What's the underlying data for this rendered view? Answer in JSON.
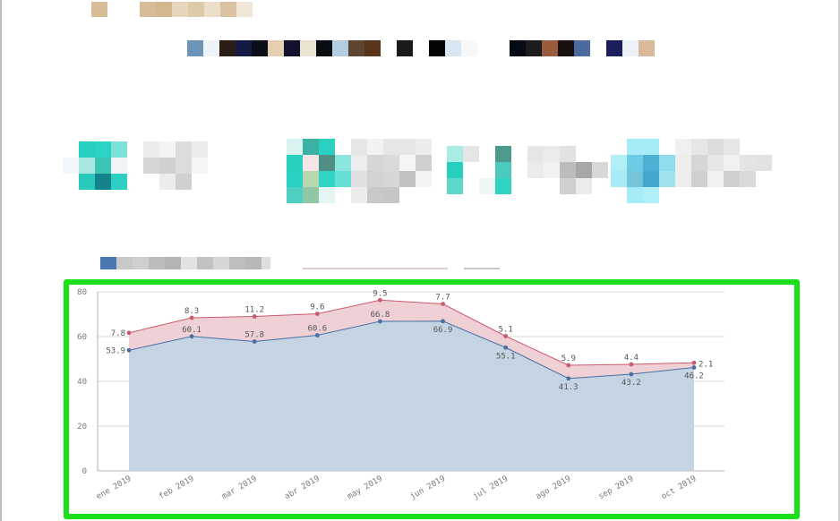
{
  "colors": {
    "frame_highlight": "#19e019",
    "area_bottom_fill": "#c5d4e3",
    "area_bottom_line": "#4a6fa5",
    "area_top_fill": "#efd0d5",
    "area_top_line": "#cc5a6e",
    "grid": "#d9d9d9",
    "axis": "#b0b0b0"
  },
  "chart_data": {
    "type": "area",
    "stacked": true,
    "categories": [
      "ene 2019",
      "feb 2019",
      "mar 2019",
      "abr 2019",
      "may 2019",
      "jun 2019",
      "jul 2019",
      "ago 2019",
      "sep 2019",
      "oct 2019"
    ],
    "series": [
      {
        "values": [
          53.9,
          60.1,
          57.8,
          60.6,
          66.8,
          66.9,
          55.1,
          41.3,
          43.2,
          46.2
        ]
      },
      {
        "values": [
          7.8,
          8.3,
          11.2,
          9.6,
          9.5,
          7.7,
          5.1,
          5.9,
          4.4,
          2.1
        ]
      }
    ],
    "yticks": [
      "0",
      "20",
      "40",
      "60",
      "80"
    ],
    "ylim": [
      0,
      80
    ],
    "grid": true,
    "legend": "none"
  }
}
